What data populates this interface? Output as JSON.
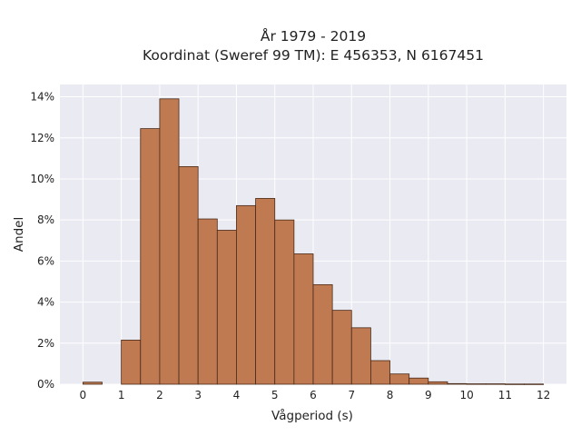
{
  "chart_data": {
    "type": "bar",
    "title_line1": "År 1979 - 2019",
    "title_line2": "Koordinat (Sweref 99 TM): E 456353, N 6167451",
    "xlabel": "Vågperiod (s)",
    "ylabel": "Andel",
    "bin_width": 0.5,
    "bins": [
      {
        "x0": 0.0,
        "x1": 0.5,
        "value": 0.1
      },
      {
        "x0": 1.0,
        "x1": 1.5,
        "value": 2.15
      },
      {
        "x0": 1.5,
        "x1": 2.0,
        "value": 12.45
      },
      {
        "x0": 2.0,
        "x1": 2.5,
        "value": 13.9
      },
      {
        "x0": 2.5,
        "x1": 3.0,
        "value": 10.6
      },
      {
        "x0": 3.0,
        "x1": 3.5,
        "value": 8.05
      },
      {
        "x0": 3.5,
        "x1": 4.0,
        "value": 7.5
      },
      {
        "x0": 4.0,
        "x1": 4.5,
        "value": 8.7
      },
      {
        "x0": 4.5,
        "x1": 5.0,
        "value": 9.05
      },
      {
        "x0": 5.0,
        "x1": 5.5,
        "value": 8.0
      },
      {
        "x0": 5.5,
        "x1": 6.0,
        "value": 6.35
      },
      {
        "x0": 6.0,
        "x1": 6.5,
        "value": 4.85
      },
      {
        "x0": 6.5,
        "x1": 7.0,
        "value": 3.6
      },
      {
        "x0": 7.0,
        "x1": 7.5,
        "value": 2.75
      },
      {
        "x0": 7.5,
        "x1": 8.0,
        "value": 1.15
      },
      {
        "x0": 8.0,
        "x1": 8.5,
        "value": 0.5
      },
      {
        "x0": 8.5,
        "x1": 9.0,
        "value": 0.3
      },
      {
        "x0": 9.0,
        "x1": 9.5,
        "value": 0.12
      },
      {
        "x0": 9.5,
        "x1": 10.0,
        "value": 0.03
      },
      {
        "x0": 10.0,
        "x1": 10.5,
        "value": 0.02
      },
      {
        "x0": 10.5,
        "x1": 11.0,
        "value": 0.02
      },
      {
        "x0": 11.0,
        "x1": 11.5,
        "value": 0.01
      },
      {
        "x0": 11.5,
        "x1": 12.0,
        "value": 0.01
      }
    ],
    "xlim": [
      -0.6,
      12.6
    ],
    "ylim": [
      0,
      14.6
    ],
    "x_ticks": [
      0,
      1,
      2,
      3,
      4,
      5,
      6,
      7,
      8,
      9,
      10,
      11,
      12
    ],
    "x_tick_labels": [
      "0",
      "1",
      "2",
      "3",
      "4",
      "5",
      "6",
      "7",
      "8",
      "9",
      "10",
      "11",
      "12"
    ],
    "y_ticks": [
      0,
      2,
      4,
      6,
      8,
      10,
      12,
      14
    ],
    "y_tick_labels": [
      "0%",
      "2%",
      "4%",
      "6%",
      "8%",
      "10%",
      "12%",
      "14%"
    ],
    "grid": true,
    "colors": {
      "bar_fill": "#bf7a52",
      "bar_stroke": "#4a2a18",
      "plot_bg": "#eaeaf2",
      "grid": "#ffffff"
    }
  }
}
